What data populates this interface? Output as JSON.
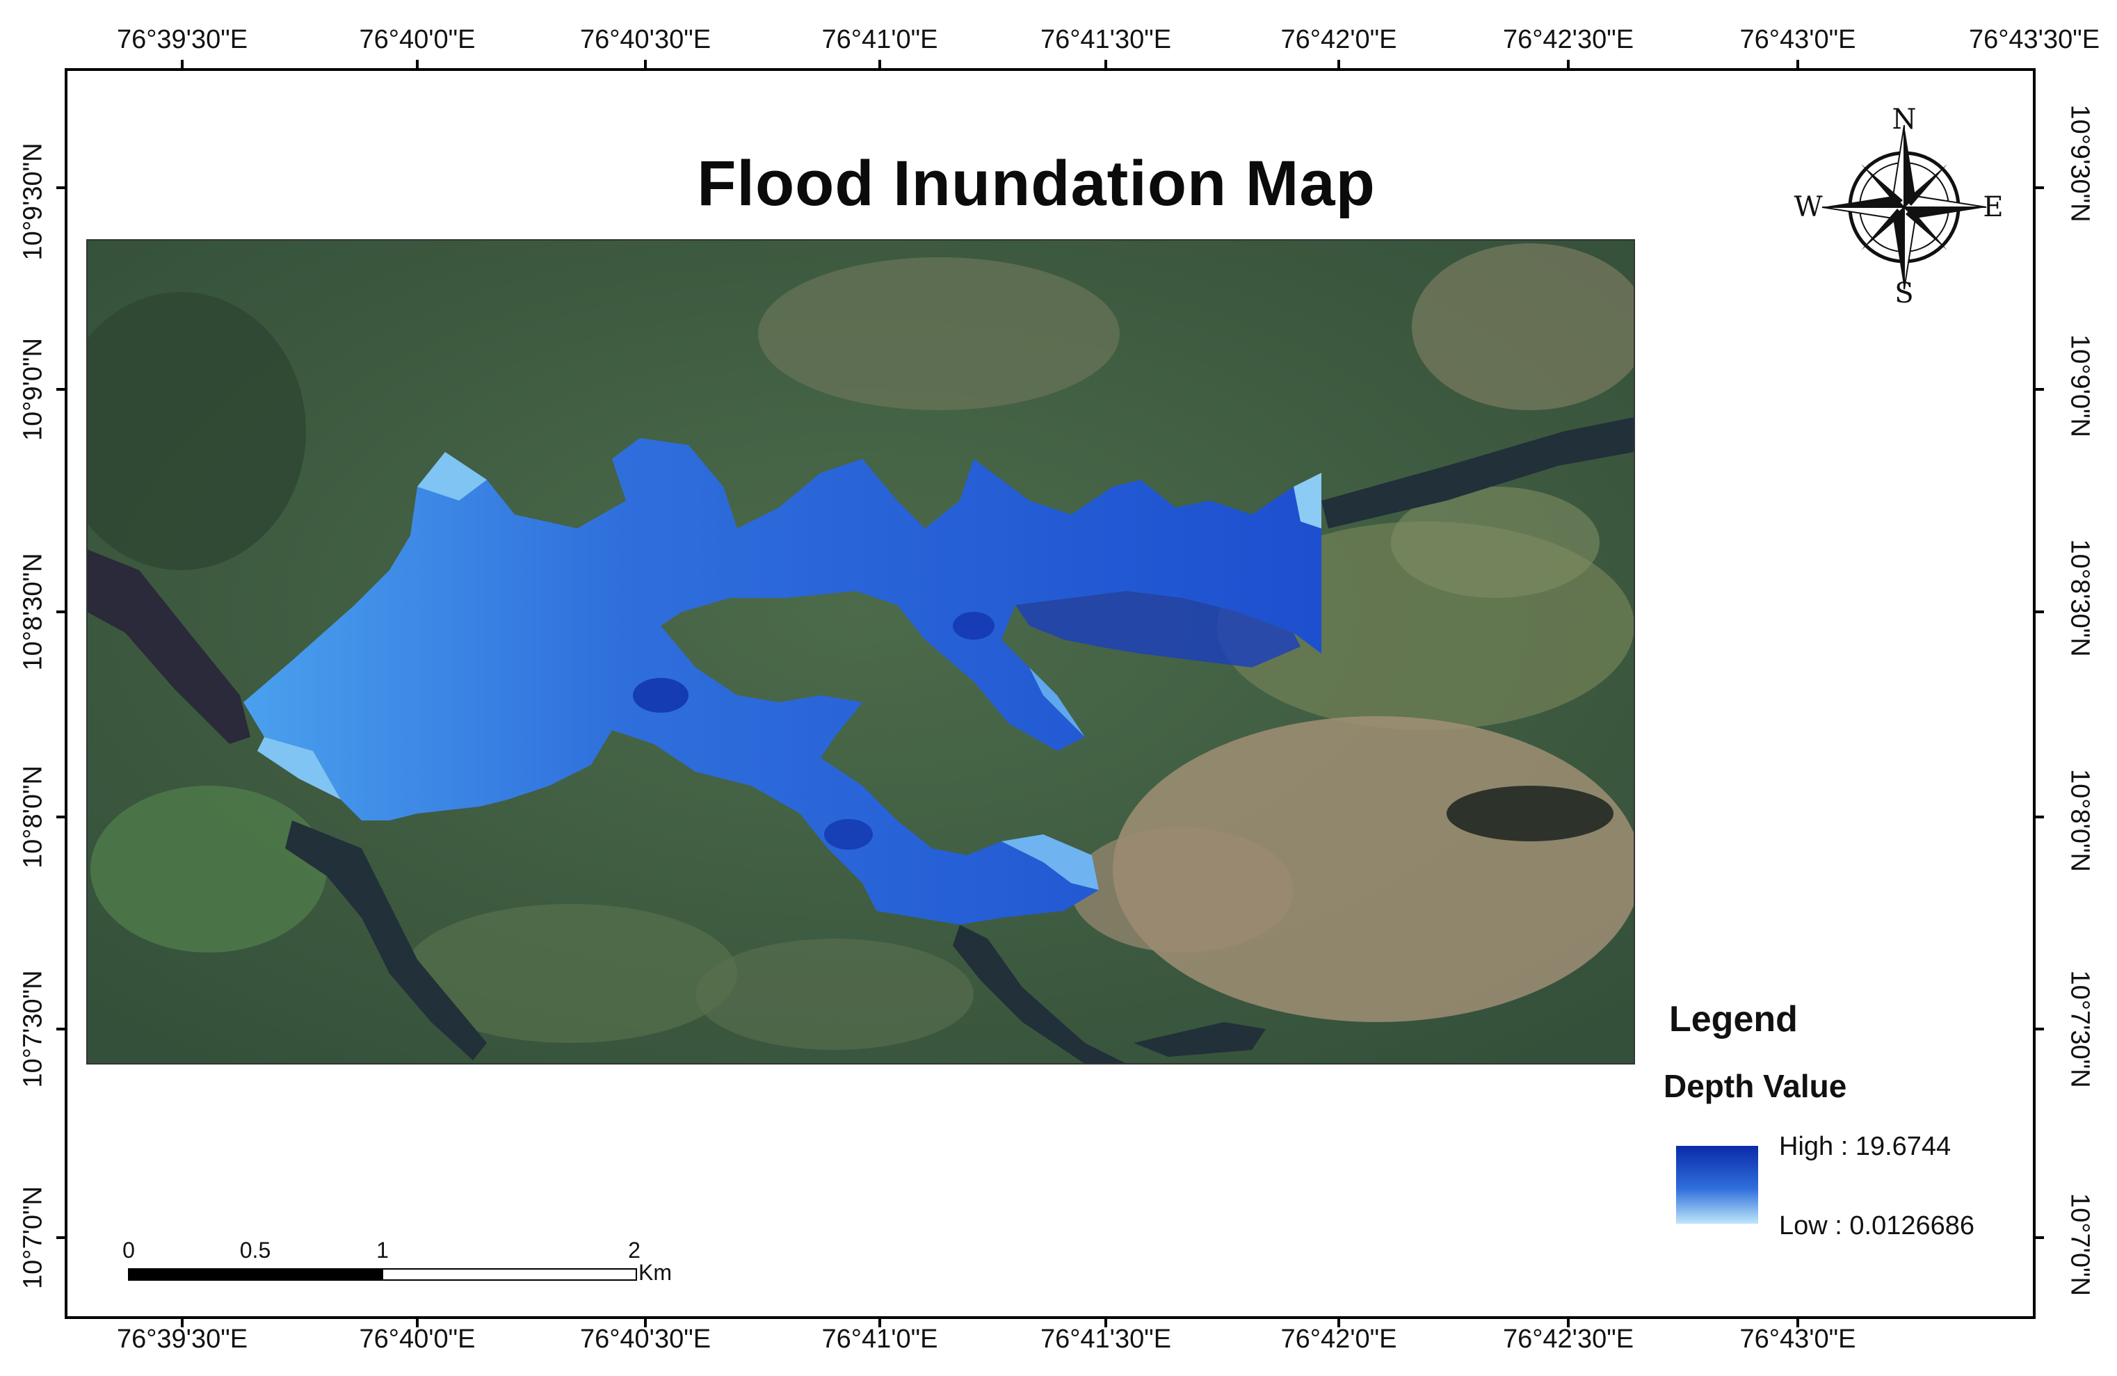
{
  "title": "Flood Inundation Map",
  "top_ticks": [
    "76°39'30\"E",
    "76°40'0\"E",
    "76°40'30\"E",
    "76°41'0\"E",
    "76°41'30\"E",
    "76°42'0\"E",
    "76°42'30\"E",
    "76°43'0\"E",
    "76°43'30\"E"
  ],
  "bottom_ticks": [
    "76°39'30\"E",
    "76°40'0\"E",
    "76°40'30\"E",
    "76°41'0\"E",
    "76°41'30\"E",
    "76°42'0\"E",
    "76°42'30\"E",
    "76°43'0\"E"
  ],
  "left_ticks": [
    "10°9'30\"N",
    "10°9'0\"N",
    "10°8'30\"N",
    "10°8'0\"N",
    "10°7'30\"N",
    "10°7'0\"N"
  ],
  "right_ticks": [
    "10°9'30\"N",
    "10°9'0\"N",
    "10°8'30\"N",
    "10°8'0\"N",
    "10°7'30\"N",
    "10°7'0\"N"
  ],
  "compass": {
    "north": "N",
    "south": "S",
    "east": "E",
    "west": "W"
  },
  "legend": {
    "title": "Legend",
    "subtitle": "Depth Value",
    "high_label": "High : 19.6744",
    "low_label": "Low : 0.0126686",
    "high_value": 19.6744,
    "low_value": 0.0126686,
    "high_color": "#0a2aa8",
    "low_color": "#bfe6fb"
  },
  "scale_bar": {
    "labels": [
      "0",
      "0.5",
      "1",
      "2"
    ],
    "unit": "Km"
  },
  "colors": {
    "water_deep": "#1d4fcf",
    "water_mid": "#2f79e6",
    "water_shallow": "#7fc4f2",
    "vegetation": "#3e5a40",
    "river": "#22303a",
    "frame": "#000000"
  }
}
